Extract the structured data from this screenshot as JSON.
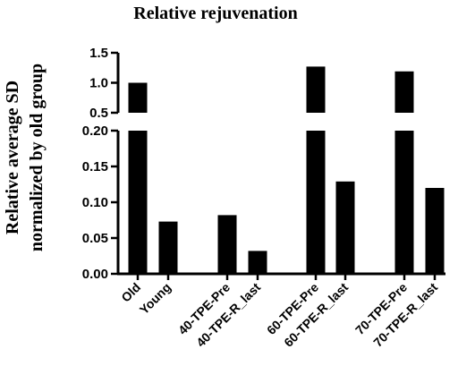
{
  "chart_data": {
    "type": "bar",
    "title": "Relative rejuvenation",
    "ylabel_line1": "Relative average SD",
    "ylabel_line2": "normalized by old group",
    "xlabel": "",
    "categories": [
      "Old",
      "Young",
      "40-TPE-Pre",
      "40-TPE-R_last",
      "60-TPE-Pre",
      "60-TPE-R_last",
      "70-TPE-Pre",
      "70-TPE-R_last"
    ],
    "values": [
      1.0,
      0.073,
      0.082,
      0.032,
      1.27,
      0.129,
      1.19,
      0.12
    ],
    "y_axis_break": true,
    "ylim_lower": [
      0,
      0.2
    ],
    "ylim_upper": [
      0.5,
      1.5
    ],
    "yticks_lower": [
      "0.00",
      "0.05",
      "0.10",
      "0.15",
      "0.20"
    ],
    "yticks_upper": [
      "0.5",
      "1.0",
      "1.5"
    ],
    "bar_color": "#000000",
    "grid": false,
    "legend": "none"
  }
}
